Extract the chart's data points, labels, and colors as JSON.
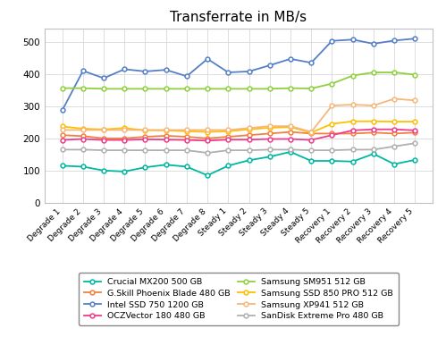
{
  "title": "Transferrate in MB/s",
  "x_labels": [
    "Degrade 1",
    "Degrade 2",
    "Degrade 3",
    "Degrade 4",
    "Degrade 5",
    "Degrade 6",
    "Degrade 7",
    "Degrade 8",
    "Steady 1",
    "Steady 2",
    "Steady 3",
    "Steady 4",
    "Steady 5",
    "Recovery 1",
    "Recovery 2",
    "Recovery 3",
    "Recovery 4",
    "Recovery 5"
  ],
  "series": [
    {
      "name": "Crucial MX200 500 GB",
      "color": "#00b8a0",
      "values": [
        115,
        112,
        100,
        97,
        110,
        118,
        112,
        85,
        115,
        132,
        143,
        158,
        130,
        130,
        128,
        152,
        120,
        133
      ]
    },
    {
      "name": "G.Skill Phoenix Blade 480 GB",
      "color": "#f48040",
      "values": [
        210,
        207,
        200,
        200,
        205,
        208,
        205,
        200,
        205,
        210,
        215,
        220,
        215,
        215,
        215,
        218,
        215,
        218
      ]
    },
    {
      "name": "Intel SSD 750 1200 GB",
      "color": "#5580c8",
      "values": [
        287,
        410,
        387,
        415,
        408,
        413,
        393,
        447,
        405,
        408,
        427,
        447,
        435,
        503,
        507,
        494,
        504,
        510
      ]
    },
    {
      "name": "OCZVector 180 480 GB",
      "color": "#f03c8a",
      "values": [
        195,
        198,
        195,
        195,
        197,
        196,
        195,
        193,
        196,
        196,
        198,
        198,
        195,
        210,
        225,
        228,
        228,
        225
      ]
    },
    {
      "name": "Samsung SM951 512 GB",
      "color": "#90d040",
      "values": [
        356,
        356,
        354,
        354,
        354,
        354,
        354,
        354,
        354,
        354,
        354,
        356,
        355,
        370,
        395,
        405,
        405,
        398
      ]
    },
    {
      "name": "Samsung SSD 850 PRO 512 GB",
      "color": "#ffc000",
      "values": [
        237,
        230,
        228,
        232,
        225,
        225,
        222,
        220,
        222,
        228,
        233,
        235,
        218,
        245,
        253,
        253,
        252,
        252
      ]
    },
    {
      "name": "Samsung XP941 512 GB",
      "color": "#f5b87a",
      "values": [
        226,
        226,
        226,
        226,
        226,
        226,
        226,
        226,
        226,
        232,
        238,
        238,
        220,
        302,
        305,
        302,
        323,
        318
      ]
    },
    {
      "name": "SanDisk Extreme Pro 480 GB",
      "color": "#b0b0b0",
      "values": [
        165,
        165,
        163,
        163,
        163,
        163,
        163,
        155,
        163,
        163,
        165,
        165,
        163,
        163,
        165,
        165,
        175,
        185
      ]
    }
  ],
  "ylim": [
    0,
    540
  ],
  "yticks": [
    0,
    100,
    200,
    300,
    400,
    500
  ],
  "figsize": [
    4.99,
    4.05
  ],
  "dpi": 100,
  "bg_color": "#ffffff",
  "grid_color": "#d8d8d8",
  "marker": "o",
  "marker_size": 3.5,
  "linewidth": 1.3,
  "legend_cols": 2,
  "title_fontsize": 11
}
